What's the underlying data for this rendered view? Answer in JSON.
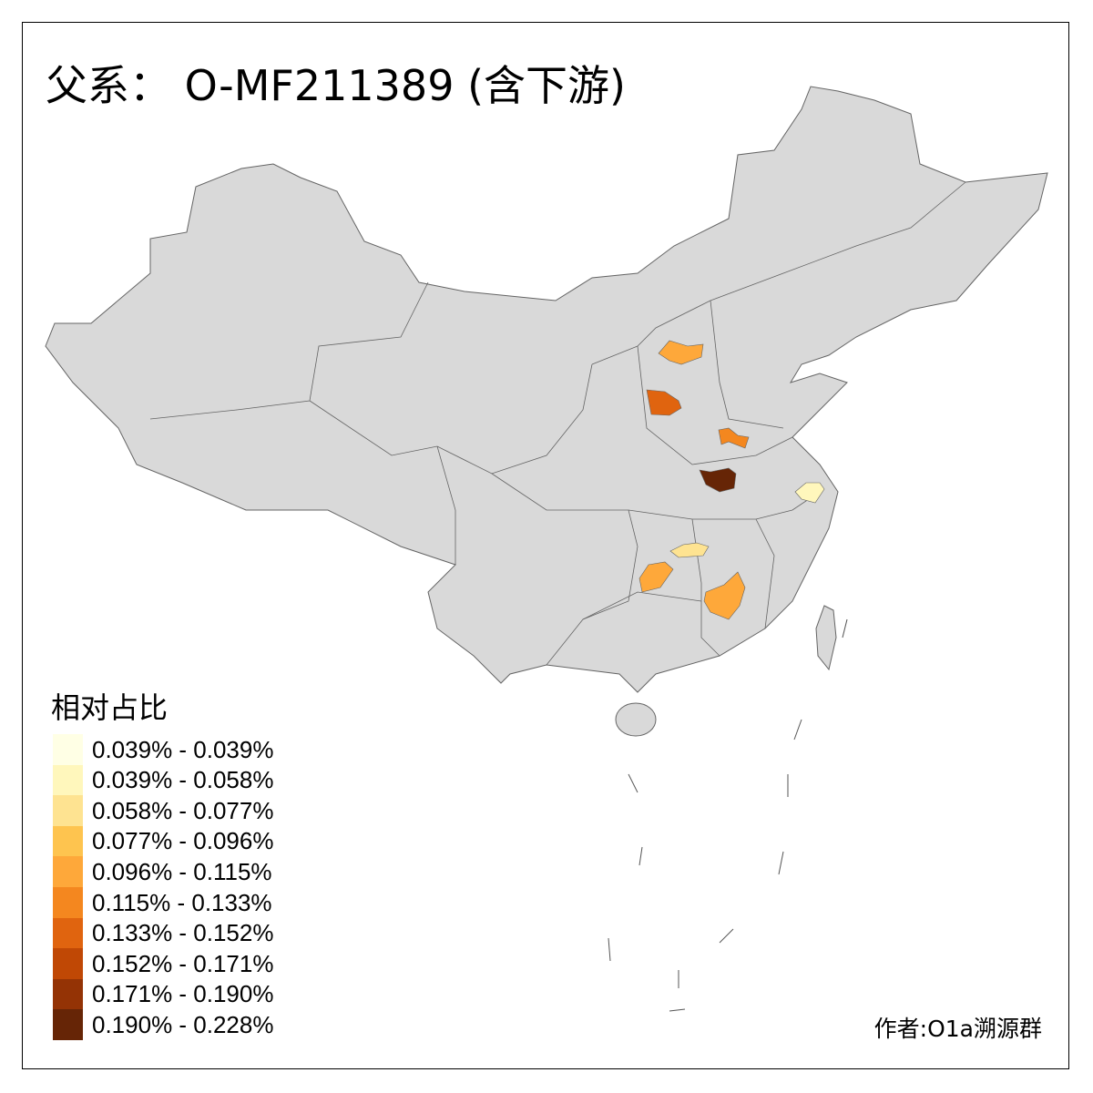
{
  "title": "父系： O-MF211389 (含下游)",
  "legend": {
    "title": "相对占比",
    "items": [
      {
        "label": "0.039% - 0.039%",
        "color": "#FFFFE5"
      },
      {
        "label": "0.039% - 0.058%",
        "color": "#FFF7BC"
      },
      {
        "label": "0.058% - 0.077%",
        "color": "#FEE391"
      },
      {
        "label": "0.077% - 0.096%",
        "color": "#FEC44F"
      },
      {
        "label": "0.096% - 0.115%",
        "color": "#FEA83A"
      },
      {
        "label": "0.115% - 0.133%",
        "color": "#F4871F"
      },
      {
        "label": "0.133% - 0.152%",
        "color": "#E0640F"
      },
      {
        "label": "0.152% - 0.171%",
        "color": "#C04805"
      },
      {
        "label": "0.171% - 0.190%",
        "color": "#943305"
      },
      {
        "label": "0.190% - 0.228%",
        "color": "#662506"
      }
    ]
  },
  "map": {
    "base_color": "#D9D9D9",
    "border_color": "#646464",
    "highlighted_regions_class": [
      4,
      6,
      5,
      9,
      1,
      2,
      4,
      4
    ]
  },
  "credit": "作者:O1a溯源群"
}
